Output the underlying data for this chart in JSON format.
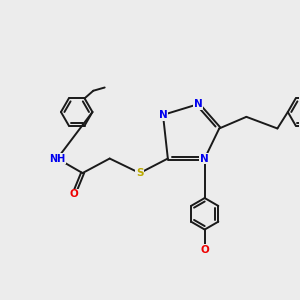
{
  "background_color": "#ececec",
  "bond_color": "#1a1a1a",
  "bond_width": 1.4,
  "atom_colors": {
    "N": "#0000ee",
    "O": "#ee0000",
    "S": "#bbaa00",
    "C": "#1a1a1a"
  },
  "font_size": 7.5,
  "fig_size": [
    3.0,
    3.0
  ],
  "dpi": 100
}
